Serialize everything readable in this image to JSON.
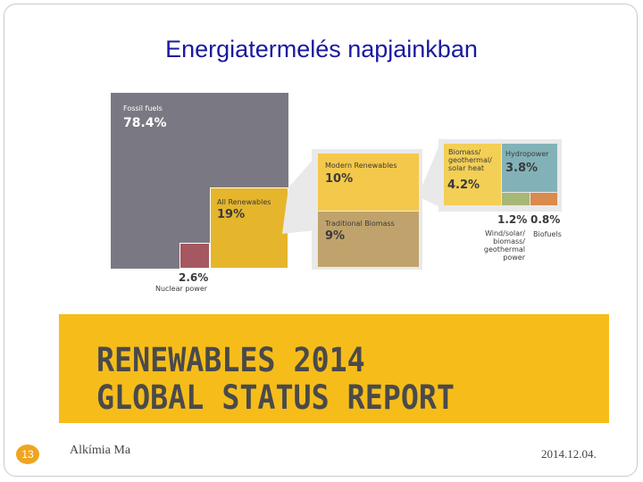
{
  "slide": {
    "title": "Energiatermelés napjainkban",
    "page_number": "13",
    "footer_left": "Alkímia Ma",
    "footer_right": "2014.12.04."
  },
  "chart_data": {
    "type": "treemap",
    "title": "",
    "segments": [
      {
        "label": "Fossil fuels",
        "value": "78.4%",
        "color": "#7a7983"
      },
      {
        "label": "All Renewables",
        "value": "19%",
        "color": "#e5b52c"
      },
      {
        "label": "Nuclear power",
        "value": "2.6%",
        "color": "#a5585f"
      },
      {
        "label": "Modern Renewables",
        "value": "10%",
        "color": "#f4c84a"
      },
      {
        "label": "Traditional Biomass",
        "value": "9%",
        "color": "#c0a36c"
      },
      {
        "label": "Biomass/ geothermal/ solar heat",
        "value": "4.2%",
        "color": "#f3cf55"
      },
      {
        "label": "Hydropower",
        "value": "3.8%",
        "color": "#82b2b8"
      },
      {
        "label": "Wind/solar/ biomass/ geothermal power",
        "value": "1.2%",
        "color": "#a7b776"
      },
      {
        "label": "Biofuels",
        "value": "0.8%",
        "color": "#d98a4d"
      }
    ]
  },
  "banner": {
    "line1": "RENEWABLES 2014",
    "line2": "GLOBAL STATUS REPORT"
  }
}
